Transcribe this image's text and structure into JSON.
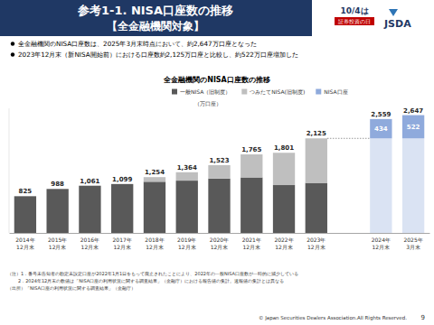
{
  "header": {
    "title": "参考1-1. NISA口座数の推移",
    "subtitle": "【全金融機関対象】",
    "logo_date": "10/4は",
    "logo_text": "証券投資の日",
    "logo_org": "JSDA"
  },
  "bullets": [
    "全金融機関のNISA口座数は、2025年3月末時点において、約2,647万口座となった",
    "2023年12月末（新NISA開始前）における口座数約2,125万口座と比較し、約522万口座増加した"
  ],
  "chart_data": {
    "type": "bar",
    "title": "全金融機関のNISA口座数の推移",
    "y_label": "（万口座）",
    "categories": [
      "2014年12月末",
      "2015年12月末",
      "2016年12月末",
      "2017年12月末",
      "2018年12月末",
      "2019年12月末",
      "2020年12月末",
      "2021年12月末",
      "2022年12月末",
      "2023年12月末",
      "2024年12月末",
      "2025年3月末"
    ],
    "series": [
      {
        "name": "一般NISA（旧制度）",
        "color": "#595959",
        "values": [
          825,
          988,
          1061,
          1099,
          1150,
          1175,
          1221,
          1247,
          1075,
          1124,
          null,
          null
        ]
      },
      {
        "name": "つみたてNISA(旧制度)",
        "color": "#bfbfbf",
        "values": [
          null,
          null,
          null,
          null,
          104,
          189,
          302,
          518,
          726,
          1001,
          null,
          null
        ]
      },
      {
        "color": "#dae3f3",
        "values": [
          null,
          null,
          null,
          null,
          null,
          null,
          null,
          null,
          null,
          null,
          2125,
          2125
        ]
      },
      {
        "name": "NISA口座",
        "color": "#8faadc",
        "values": [
          null,
          null,
          null,
          null,
          null,
          null,
          null,
          null,
          null,
          null,
          434,
          522
        ],
        "data_labels": true
      }
    ],
    "totals": [
      825,
      988,
      1061,
      1099,
      1254,
      1364,
      1523,
      1765,
      1801,
      2125,
      2559,
      2647
    ],
    "total_labels": [
      "825",
      "988",
      "1,061",
      "1,099",
      "1,254",
      "1,364",
      "1,523",
      "1,765",
      "1,801",
      "2,125",
      "2,559",
      "2,647"
    ],
    "ylim": [
      0,
      2800
    ],
    "stacked": true,
    "tick_labels": "x",
    "legend": "top"
  },
  "notes": [
    "（注）1．番号未告知者の勘定未設定口座が2022年1月1日をもって廃止されたことにより、2022年の一般NISA口座数が一時的に減少している",
    "2．2024年12月末の数値は「NISA口座の利用状況に関する調査結果」（金融庁）における報告値の集計。速報値の集計とは異なる"
  ],
  "source": "（出所）「NISA口座の利用状況に関する調査結果」（金融庁）",
  "footer": {
    "copyright": "© Japan Securities Dealers Association.All Rights Reserved.",
    "page": 9
  }
}
